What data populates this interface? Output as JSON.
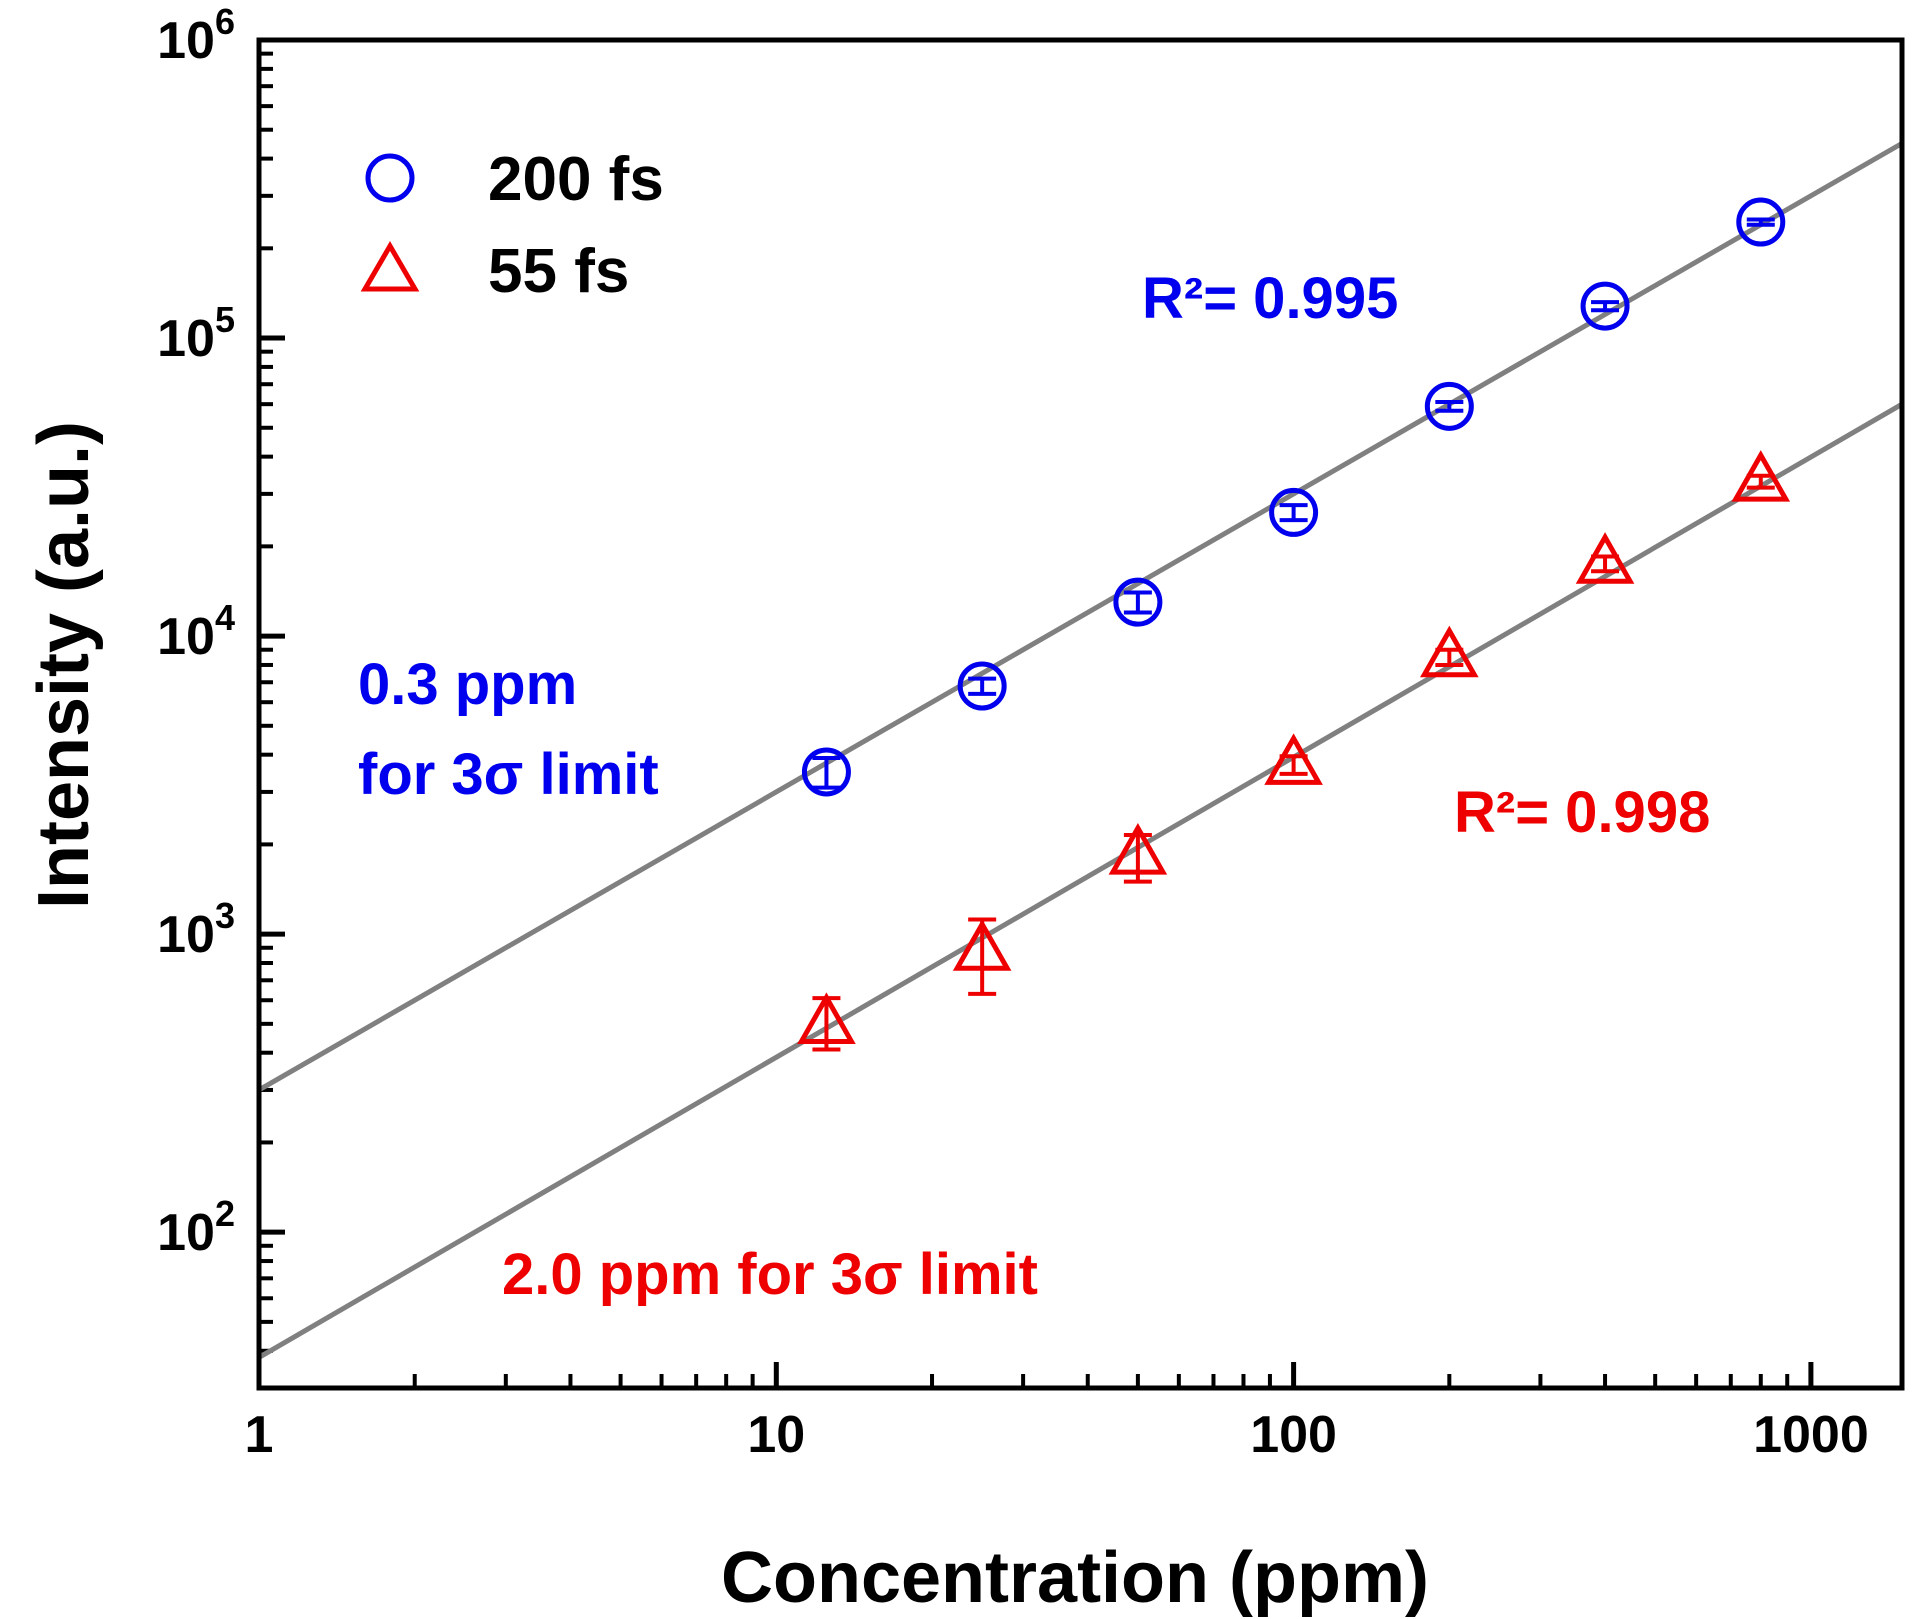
{
  "chart_data": {
    "type": "scatter",
    "xscale": "log",
    "yscale": "log",
    "xlabel": "Concentration (ppm)",
    "ylabel": "Intensity (a.u.)",
    "xlim": [
      1,
      1500
    ],
    "ylim": [
      30,
      1000000
    ],
    "x_ticks": [
      {
        "value": 1,
        "label": "1"
      },
      {
        "value": 10,
        "label": "10"
      },
      {
        "value": 100,
        "label": "100"
      },
      {
        "value": 1000,
        "label": "1000"
      }
    ],
    "y_ticks": [
      {
        "value": 100,
        "base": "10",
        "exp": "2"
      },
      {
        "value": 1000,
        "base": "10",
        "exp": "3"
      },
      {
        "value": 10000,
        "base": "10",
        "exp": "4"
      },
      {
        "value": 100000,
        "base": "10",
        "exp": "5"
      },
      {
        "value": 1000000,
        "base": "10",
        "exp": "6"
      }
    ],
    "legend": {
      "position": "top-left"
    },
    "series": [
      {
        "name": "200 fs",
        "marker": "circle",
        "color": "#0000ee",
        "x": [
          12.5,
          25,
          50,
          100,
          200,
          400,
          800
        ],
        "y": [
          3500,
          6800,
          13000,
          26000,
          59000,
          128000,
          245000
        ],
        "err_low": [
          3100,
          6400,
          12000,
          24500,
          57000,
          124000,
          240000
        ],
        "err_high": [
          3900,
          7200,
          14000,
          27500,
          61000,
          132000,
          250000
        ],
        "fit": {
          "x": [
            1,
            1500
          ],
          "y": [
            300,
            450000
          ]
        },
        "r2_label": "R²= 0.995",
        "lod_label": [
          "0.3 ppm",
          "for 3σ limit"
        ]
      },
      {
        "name": "55 fs",
        "marker": "triangle",
        "color": "#ee0000",
        "x": [
          12.5,
          25,
          50,
          100,
          200,
          400,
          800
        ],
        "y": [
          500,
          880,
          1850,
          3700,
          8500,
          17500,
          33000
        ],
        "err_low": [
          410,
          630,
          1500,
          3450,
          8000,
          16500,
          31500
        ],
        "err_high": [
          610,
          1120,
          2150,
          3950,
          9000,
          18500,
          34500
        ],
        "fit": {
          "x": [
            1,
            1500
          ],
          "y": [
            38,
            60000
          ]
        },
        "r2_label": "R²= 0.998",
        "lod_label": [
          "2.0 ppm for 3σ limit"
        ]
      }
    ],
    "fit_line_color": "#808080"
  }
}
